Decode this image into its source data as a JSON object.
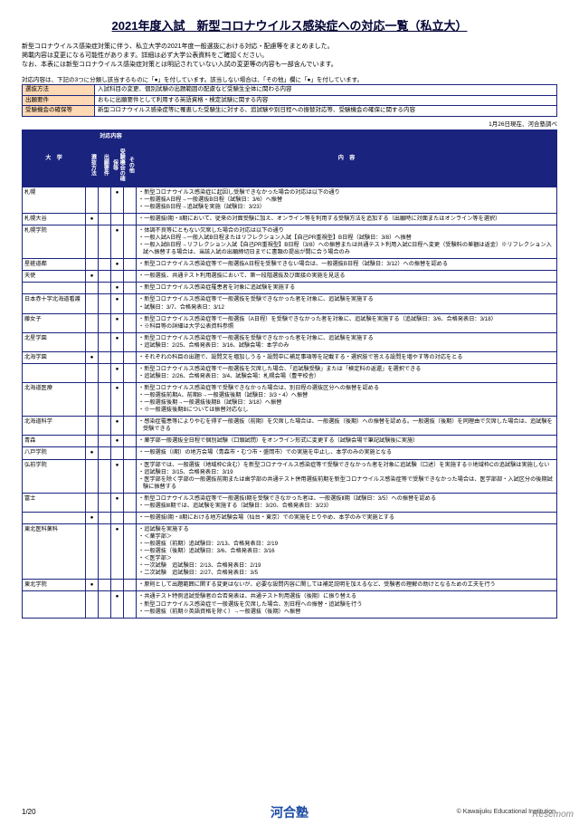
{
  "title": "2021年度入試　新型コロナウイルス感染症への対応一覧（私立大）",
  "intro": [
    "新型コロナウイルス感染症対策に伴う、私立大学の2021年度一般選抜における対応・配慮等をまとめました。",
    "掲載内容は変更になる可能性があります。詳細は必ず大学公表資料をご確認ください。",
    "なお、本表には新型コロナウイルス感染症対策とは明記されていない入試の変更等の内容も一部含んでいます。"
  ],
  "legendNote": "対応内容は、下記の3つに分類し該当するものに「●」を付しています。該当しない場合は、「その他」欄に「●」を付しています。",
  "legend": [
    {
      "label": "選抜方法",
      "text": "入試科目の変更、個別試験の出題範囲の配慮など受験生全体に関わる内容"
    },
    {
      "label": "出願要件",
      "text": "おもに出願要件として利用する英語資格・検定試験に関する内容"
    },
    {
      "label": "受験機会の確保等",
      "text": "新型コロナウイルス感染症等に罹患した受験生に対する、追試験や別日程への振替対応等、受験機会の確保に関する内容"
    }
  ],
  "dateNote": "1月26日現在、河合塾調べ",
  "headers": {
    "uni": "大　学",
    "group": "対応内容",
    "c1": "選抜方法",
    "c2": "出願要件",
    "c3": "受験機会の確保等",
    "c4": "その他",
    "content": "内　容"
  },
  "rows": [
    {
      "u": "札幌",
      "d": [
        0,
        0,
        1,
        0
      ],
      "c": [
        "新型コロナウイルス感染症に起因し受験できなかった場合の対応は以下の通り",
        "一般選抜A日程→一般選抜B日程（試験日：3/6）へ振替",
        "一般選抜B日程→追試験を実施（試験日：3/23）"
      ]
    },
    {
      "u": "札幌大谷",
      "d": [
        1,
        0,
        0,
        0
      ],
      "c": [
        "一般選抜Ⅰ期・Ⅱ期において、従来の対面受験に加え、オンライン等を利用する受験方法を追加する（出願時に対面またはオンライン等を選択）"
      ]
    },
    {
      "u": "札幌学院",
      "d": [
        0,
        0,
        1,
        0
      ],
      "c": [
        "体調不良等にともない欠席した場合の対応は以下の通り",
        "一般入試A日程→一般入試B日程またはリフレクション入試【自己PR重視型】B日程（試験日：3/8）へ振替",
        "一般入試B日程→リフレクション入試【自己PR重視型】B日程（3/8）への振替または共通テスト利用入試C日程へ変更（受験料の差額は返金）※リフレクション入試へ振替する場合は、当該入試の出願締切日までに書類の提出が間に合う場合のみ"
      ]
    },
    {
      "u": "星槎道都",
      "d": [
        0,
        0,
        1,
        0
      ],
      "c": [
        "新型コロナウイルス感染症等で一般選抜A日程を受験できない場合は、一般選抜B日程（試験日：3/12）への振替を認める"
      ]
    },
    {
      "u": "天使",
      "d": [
        1,
        0,
        0,
        0
      ],
      "c": [
        "一般選抜、共通テスト利用選抜において、第一段階選抜及び面接の実施を見送る"
      ]
    },
    {
      "u": "",
      "d": [
        0,
        0,
        1,
        0
      ],
      "c": [
        "新型コロナウイルス感染症罹患者を対象に追試験を実施する"
      ]
    },
    {
      "u": "日本赤十字北海道看護",
      "d": [
        0,
        0,
        1,
        0
      ],
      "c": [
        "新型コロナウイルス感染症等で一般選抜を受験できなかった者を対象に、追試験を実施する",
        "試験日：3/7、合格発表日：3/12"
      ]
    },
    {
      "u": "藤女子",
      "d": [
        0,
        0,
        1,
        0
      ],
      "c": [
        "新型コロナウイルス感染症等で一般選抜（A日程）を受験できなかった者を対象に、追試験を実施する（追試験日：3/6、合格発表日：3/18）",
        "※科目等の詳細は大学公表資料参照"
      ]
    },
    {
      "u": "北星学園",
      "d": [
        0,
        0,
        1,
        0
      ],
      "c": [
        "新型コロナウイルス感染症等で一般選抜を受験できなかった者を対象に、追試験を実施する",
        "追試験日：2/25、合格発表日：3/16、試験会場：本学のみ"
      ]
    },
    {
      "u": "北海学園",
      "d": [
        1,
        0,
        0,
        0
      ],
      "c": [
        "それぞれの科目の出題で、設問文を増加しうる・設問中に補足事項等を記載する・選択肢で答える設問を増やす等の対応をとる"
      ]
    },
    {
      "u": "",
      "d": [
        0,
        0,
        1,
        0
      ],
      "c": [
        "新型コロナウイルス感染症等で一般選抜を欠席した場合、「追試験受験」または「検定料の返還」を選択できる",
        "追試験日：2/26、合格発表日：3/4、試験会場：札幌会場（豊平校舎）"
      ]
    },
    {
      "u": "北海道医療",
      "d": [
        0,
        0,
        1,
        0
      ],
      "c": [
        "新型コロナウイルス感染症等で受験できなかった場合は、別日程の選抜区分への振替を認める",
        "一般選抜前期A、前期B→一般選抜後期（試験日：3/3・4）へ振替",
        "一般選抜後期→一般選抜後期B（試験日：3/18）へ振替",
        "※一般選抜後期Bについては振替対応なし"
      ]
    },
    {
      "u": "北海道科学",
      "d": [
        0,
        0,
        1,
        0
      ],
      "c": [
        "感染症罹患等によりやむを得ず一般選抜（前期）を欠席した場合は、一般選抜（後期）への振替を認める。一般選抜（後期）を同理由で欠席した場合は、追試験を受験できる"
      ]
    },
    {
      "u": "青森",
      "d": [
        0,
        0,
        1,
        0
      ],
      "c": [
        "薬学部一般選抜全日程で個別試験（口頭試問）をオンライン形式に変更する（試験会場で筆記試験後に実施）"
      ]
    },
    {
      "u": "八戸学院",
      "d": [
        1,
        0,
        0,
        0
      ],
      "c": [
        "一般選抜（Ⅰ期）の地方会場（青森市・むつ市・盛岡市）での実施を中止し、本学のみの実施となる"
      ]
    },
    {
      "u": "弘前学院",
      "d": [
        0,
        0,
        1,
        0
      ],
      "c": [
        "医学部では、一般選抜（地域枠C含む）を新型コロナウイルス感染症等で受験できなかった者を対象に追試験（口述）を実施する※地域枠Cの追試験は実施しない",
        "追試験日：3/15、合格発表日：3/19",
        "医学部を除く学部の一般選抜前期または歯学部の共通テスト併用選抜前期を新型コロナウイルス感染症等で受験できなかった場合は、医学部部・入試区分の後期試験に振替する"
      ]
    },
    {
      "u": "富士",
      "d": [
        0,
        0,
        1,
        0
      ],
      "c": [
        "新型コロナウイルス感染症等で一般選抜Ⅰ期を受験できなかった者は、一般選抜Ⅱ期（試験日：3/5）への振替を認める",
        "一般選抜Ⅲ期では、追試験を実施する（試験日：3/20、合格発表日：3/23）"
      ]
    },
    {
      "u": "",
      "d": [
        1,
        0,
        0,
        0
      ],
      "c": [
        "一般選抜Ⅰ期・Ⅱ期における地方試験会場（仙台・東京）での実施をとりやめ、本学のみで実施とする"
      ]
    },
    {
      "u": "東北医科薬科",
      "d": [
        0,
        0,
        1,
        0
      ],
      "c": [
        "追試験を実施する",
        "＜薬学部＞",
        "一般選抜（前期）追試験日：2/13、合格発表日：2/19",
        "一般選抜（後期）追試験日：3/6、合格発表日：3/16",
        "＜医学部＞",
        "一次試験　追試験日：2/13、合格発表日：2/19",
        "二次試験　追試験日：2/27、合格発表日：3/5"
      ]
    },
    {
      "u": "東北学院",
      "d": [
        1,
        0,
        0,
        0
      ],
      "c": [
        "原則として出題範囲に関する変更はないが、必要な設問内容に関しては補足説明を加えるなど、受験者の理解の助けとなるための工夫を行う"
      ]
    },
    {
      "u": "",
      "d": [
        0,
        0,
        1,
        0
      ],
      "c": [
        "共通テスト特例追試受験者の合否発表は、共通テスト利用選抜（後期）に振り替える",
        "新型コロナウイルス感染症で一般選抜を欠席した場合、別日程への振替・追試験を行う",
        "一般選抜（前期※英語資格を除く）→一般選抜（後期）へ振替"
      ]
    }
  ],
  "footer": {
    "page": "1/20",
    "brand": "河合塾",
    "copy": "©  Kawaijuku Educational Institution.",
    "wm": "Resemom"
  }
}
